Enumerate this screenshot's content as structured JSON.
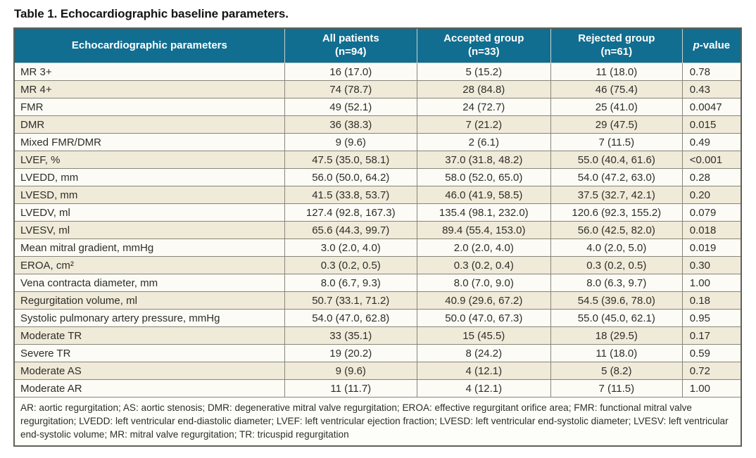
{
  "title": "Table 1. Echocardiographic baseline parameters.",
  "colors": {
    "header_bg": "#116e90",
    "header_text": "#ffffff",
    "row_even_bg": "#f0ead9",
    "row_odd_bg": "#fcfbf6",
    "border": "#85867a"
  },
  "table": {
    "header": {
      "parameters": "Echocardiographic parameters",
      "all_patients": {
        "line1": "All patients",
        "line2": "(n=94)"
      },
      "accepted_group": {
        "line1": "Accepted group",
        "line2": "(n=33)"
      },
      "rejected_group": {
        "line1": "Rejected group",
        "line2": "(n=61)"
      },
      "p_value": {
        "italic": "p",
        "rest": "-value"
      }
    },
    "rows": [
      {
        "param": "MR 3+",
        "all": "16 (17.0)",
        "accepted": "5 (15.2)",
        "rejected": "11 (18.0)",
        "p": "0.78"
      },
      {
        "param": "MR 4+",
        "all": "74 (78.7)",
        "accepted": "28 (84.8)",
        "rejected": "46 (75.4)",
        "p": "0.43"
      },
      {
        "param": "FMR",
        "all": "49 (52.1)",
        "accepted": "24 (72.7)",
        "rejected": "25 (41.0)",
        "p": "0.0047"
      },
      {
        "param": "DMR",
        "all": "36 (38.3)",
        "accepted": "7 (21.2)",
        "rejected": "29 (47.5)",
        "p": "0.015"
      },
      {
        "param": "Mixed FMR/DMR",
        "all": "9 (9.6)",
        "accepted": "2 (6.1)",
        "rejected": "7 (11.5)",
        "p": "0.49"
      },
      {
        "param": "LVEF, %",
        "all": "47.5 (35.0, 58.1)",
        "accepted": "37.0 (31.8, 48.2)",
        "rejected": "55.0 (40.4, 61.6)",
        "p": "<0.001"
      },
      {
        "param": "LVEDD, mm",
        "all": "56.0 (50.0, 64.2)",
        "accepted": "58.0 (52.0, 65.0)",
        "rejected": "54.0 (47.2, 63.0)",
        "p": "0.28"
      },
      {
        "param": "LVESD, mm",
        "all": "41.5 (33.8, 53.7)",
        "accepted": "46.0 (41.9, 58.5)",
        "rejected": "37.5 (32.7, 42.1)",
        "p": "0.20"
      },
      {
        "param": "LVEDV, ml",
        "all": "127.4 (92.8, 167.3)",
        "accepted": "135.4 (98.1, 232.0)",
        "rejected": "120.6 (92.3, 155.2)",
        "p": "0.079"
      },
      {
        "param": "LVESV, ml",
        "all": "65.6 (44.3, 99.7)",
        "accepted": "89.4 (55.4, 153.0)",
        "rejected": "56.0 (42.5, 82.0)",
        "p": "0.018"
      },
      {
        "param": "Mean mitral gradient, mmHg",
        "all": "3.0 (2.0, 4.0)",
        "accepted": "2.0 (2.0, 4.0)",
        "rejected": "4.0 (2.0, 5.0)",
        "p": "0.019"
      },
      {
        "param": "EROA, cm²",
        "all": "0.3 (0.2, 0.5)",
        "accepted": "0.3 (0.2, 0.4)",
        "rejected": "0.3 (0.2, 0.5)",
        "p": "0.30"
      },
      {
        "param": "Vena contracta diameter, mm",
        "all": "8.0 (6.7, 9.3)",
        "accepted": "8.0 (7.0, 9.0)",
        "rejected": "8.0 (6.3, 9.7)",
        "p": "1.00"
      },
      {
        "param": "Regurgitation volume, ml",
        "all": "50.7 (33.1, 71.2)",
        "accepted": "40.9 (29.6, 67.2)",
        "rejected": "54.5 (39.6, 78.0)",
        "p": "0.18"
      },
      {
        "param": "Systolic pulmonary artery pressure, mmHg",
        "all": "54.0 (47.0, 62.8)",
        "accepted": "50.0 (47.0, 67.3)",
        "rejected": "55.0 (45.0, 62.1)",
        "p": "0.95"
      },
      {
        "param": "Moderate TR",
        "all": "33 (35.1)",
        "accepted": "15 (45.5)",
        "rejected": "18 (29.5)",
        "p": "0.17"
      },
      {
        "param": "Severe TR",
        "all": "19 (20.2)",
        "accepted": "8 (24.2)",
        "rejected": "11 (18.0)",
        "p": "0.59"
      },
      {
        "param": "Moderate AS",
        "all": "9 (9.6)",
        "accepted": "4 (12.1)",
        "rejected": "5 (8.2)",
        "p": "0.72"
      },
      {
        "param": "Moderate AR",
        "all": "11 (11.7)",
        "accepted": "4 (12.1)",
        "rejected": "7 (11.5)",
        "p": "1.00"
      }
    ]
  },
  "footnote": "AR: aortic regurgitation; AS: aortic stenosis; DMR: degenerative mitral valve regurgitation; EROA: effective regurgitant orifice area; FMR: functional mitral valve regurgitation; LVEDD: left ventricular end-diastolic diameter; LVEF: left ventricular ejection fraction; LVESD: left ventricular end-systolic diameter; LVESV: left ventricular end-systolic volume; MR: mitral valve regurgitation; TR: tricuspid regurgitation"
}
